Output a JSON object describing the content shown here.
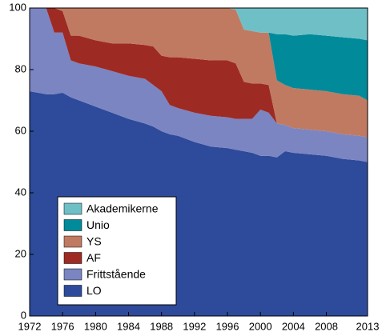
{
  "chart_data": {
    "type": "stacked-area",
    "x": [
      1972,
      1974,
      1975,
      1976,
      1977,
      1978,
      1980,
      1982,
      1984,
      1986,
      1987,
      1988,
      1989,
      1990,
      1992,
      1994,
      1996,
      1997,
      1998,
      1999,
      2000,
      2001,
      2002,
      2003,
      2004,
      2006,
      2008,
      2010,
      2012,
      2013
    ],
    "series": [
      {
        "name": "LO",
        "color": "#2e4a9a",
        "values": [
          73,
          72,
          72,
          72.5,
          71,
          70,
          68,
          66,
          64,
          62.5,
          61.5,
          60,
          59,
          58.5,
          56.5,
          55,
          54.5,
          54,
          53.5,
          53,
          52,
          52,
          51.5,
          53.5,
          53,
          52.5,
          52,
          51,
          50.5,
          50
        ]
      },
      {
        "name": "Frittstående",
        "color": "#7b85c2",
        "values": [
          27,
          28,
          20,
          19.5,
          12,
          12,
          13,
          13.5,
          14,
          14.5,
          13.5,
          13,
          9.5,
          9,
          9.5,
          10,
          10,
          10,
          10.5,
          11,
          15,
          14,
          11,
          8.5,
          8,
          8,
          8,
          8,
          8,
          8
        ]
      },
      {
        "name": "AF",
        "color": "#9e2a24",
        "values": [
          0,
          0,
          8,
          7,
          8,
          9,
          8.5,
          9,
          10.5,
          11,
          12.5,
          11.5,
          15.5,
          16.5,
          17.5,
          18,
          18.5,
          18,
          12,
          11.5,
          8.5,
          9,
          0,
          0,
          0,
          0,
          0,
          0,
          0,
          0
        ]
      },
      {
        "name": "YS",
        "color": "#c07a62",
        "values": [
          0,
          0,
          0,
          1,
          9,
          9,
          10.5,
          11.5,
          11.5,
          12,
          12.5,
          15.5,
          16,
          16,
          16.5,
          17,
          17,
          17.5,
          17,
          17,
          16.5,
          17,
          14,
          13,
          13,
          13,
          13,
          13,
          13,
          12
        ]
      },
      {
        "name": "Unio",
        "color": "#008a9a",
        "values": [
          0,
          0,
          0,
          0,
          0,
          0,
          0,
          0,
          0,
          0,
          0,
          0,
          0,
          0,
          0,
          0,
          0,
          0,
          0,
          0,
          0,
          0,
          15,
          16.5,
          17,
          18,
          18,
          18.5,
          18.5,
          19.5
        ]
      },
      {
        "name": "Akademikerne",
        "color": "#6fbfc6",
        "values": [
          0,
          0,
          0,
          0,
          0,
          0,
          0,
          0,
          0,
          0,
          0,
          0,
          0,
          0,
          0,
          0,
          0,
          0.5,
          7,
          7.5,
          8,
          8,
          8.5,
          8.5,
          9,
          8.5,
          9,
          9.5,
          10,
          10.5
        ]
      }
    ],
    "xlim": [
      1972,
      2013
    ],
    "xticks": [
      1972,
      1976,
      1980,
      1984,
      1988,
      1992,
      1996,
      2000,
      2004,
      2008,
      2013
    ],
    "ylim": [
      0,
      100
    ],
    "yticks": [
      0,
      20,
      40,
      60,
      80,
      100
    ],
    "legend": "lower-left"
  }
}
